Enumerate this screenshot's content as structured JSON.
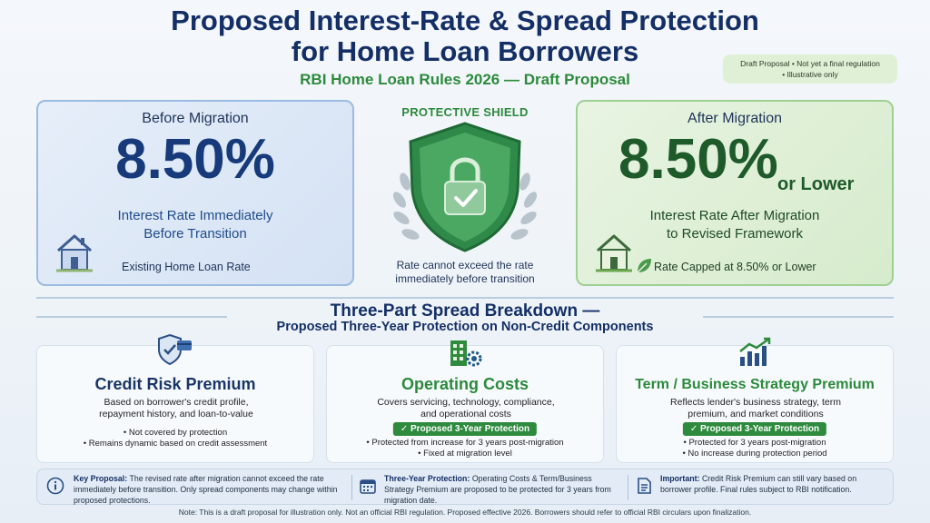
{
  "header": {
    "title_line1": "Proposed Interest-Rate & Spread Protection",
    "title_line2": "for Home Loan Borrowers",
    "subtitle": "RBI Home Loan Rules 2026 — Draft Proposal",
    "draft_note_line1": "Draft Proposal • Not yet a final regulation",
    "draft_note_line2": "• Illustrative only"
  },
  "before": {
    "heading": "Before Migration",
    "rate": "8.50%",
    "desc_line1": "Interest Rate Immediately",
    "desc_line2": "Before Transition",
    "footer": "Existing Home Loan Rate",
    "icon": "house-icon"
  },
  "shield": {
    "label": "PROTECTIVE SHIELD",
    "text_line1": "Rate cannot exceed the rate",
    "text_line2": "immediately before transition",
    "icon": "shield-lock-icon"
  },
  "after": {
    "heading": "After Migration",
    "rate": "8.50%",
    "or_lower": "or Lower",
    "desc_line1": "Interest Rate After Migration",
    "desc_line2": "to Revised Framework",
    "footer": "Rate Capped at 8.50% or Lower",
    "icon": "house-icon"
  },
  "breakdown": {
    "title": "Three-Part Spread Breakdown —",
    "subtitle": "Proposed Three-Year Protection on Non-Credit Components"
  },
  "components": [
    {
      "title": "Credit Risk Premium",
      "desc_line1": "Based on borrower's credit profile,",
      "desc_line2": "repayment history, and loan-to-value",
      "badge": "",
      "bullets": [
        "• Not covered by protection",
        "• Remains dynamic based on credit assessment"
      ],
      "icon": "shield-card-icon"
    },
    {
      "title": "Operating Costs",
      "desc_line1": "Covers servicing, technology, compliance,",
      "desc_line2": "and operational costs",
      "badge": "✓ Proposed 3-Year Protection",
      "bullets": [
        "• Protected from increase for 3 years post-migration",
        "• Fixed at migration level"
      ],
      "icon": "building-gear-icon"
    },
    {
      "title": "Term / Business Strategy Premium",
      "desc_line1": "Reflects lender's business strategy, term",
      "desc_line2": "premium, and market conditions",
      "badge": "✓ Proposed 3-Year Protection",
      "bullets": [
        "• Protected for 3 years post-migration",
        "• No increase during protection period"
      ],
      "icon": "growth-chart-icon"
    }
  ],
  "bottom": {
    "key_label": "Key Proposal:",
    "key_text": "The revised rate after migration cannot exceed the rate immediately before transition. Only spread components may change within proposed protections.",
    "three_label": "Three-Year Protection:",
    "three_text": "Operating Costs & Term/Business Strategy Premium are proposed to be protected for 3 years from migration date.",
    "important_label": "Important:",
    "important_text": "Credit Risk Premium can still vary based on borrower profile. Final rules subject to RBI notification."
  },
  "footer_note": "Note: This is a draft proposal for illustration only. Not an official RBI regulation. Proposed effective 2026. Borrowers should refer to official RBI circulars upon finalization.",
  "colors": {
    "navy": "#142f66",
    "green": "#2c8a3c",
    "badge_green": "#2e8b3e"
  }
}
